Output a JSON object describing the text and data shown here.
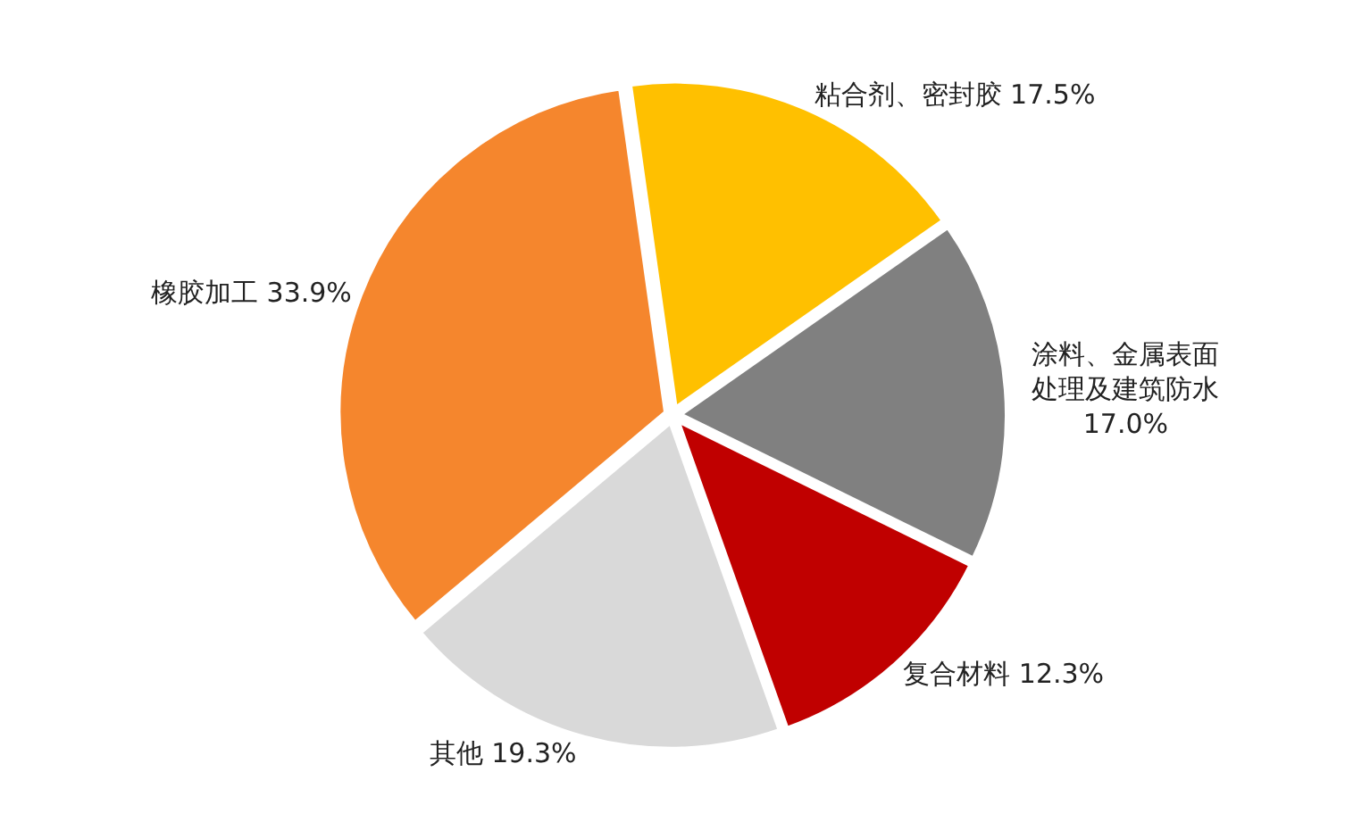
{
  "chart_data": {
    "type": "pie",
    "categories": [
      "粘合剂、密封胶",
      "涂料、金属表面处理及建筑防水",
      "复合材料",
      "其他",
      "橡胶加工"
    ],
    "values": [
      17.5,
      17.0,
      12.3,
      19.3,
      33.9
    ],
    "colors": [
      "#ffc000",
      "#808080",
      "#c00000",
      "#d9d9d9",
      "#f5862d"
    ],
    "value_labels": [
      "17.5%",
      "17.0%",
      "12.3%",
      "19.3%",
      "33.9%"
    ],
    "legend": false
  }
}
